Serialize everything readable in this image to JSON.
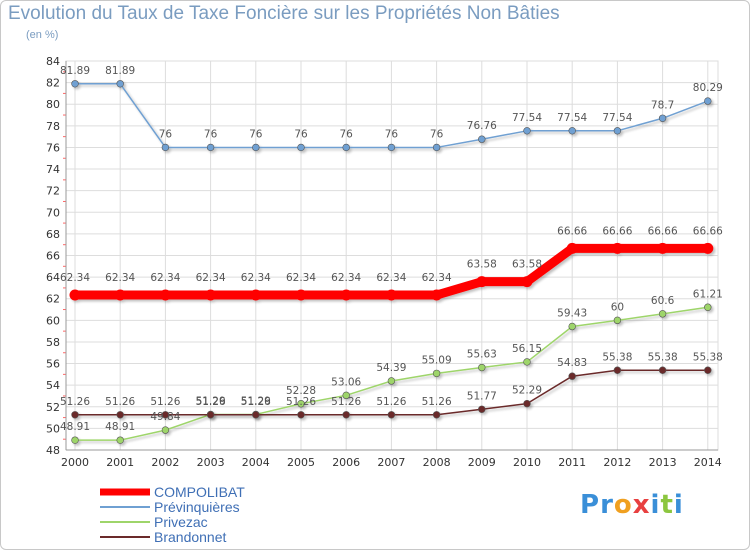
{
  "chart_data": {
    "type": "line",
    "title": "Evolution du Taux de Taxe Foncière sur les Propriétés Non Bâties",
    "subtitle": "(en %)",
    "xlabel": "",
    "ylabel": "",
    "x": [
      "2000",
      "2001",
      "2002",
      "2003",
      "2004",
      "2005",
      "2006",
      "2007",
      "2008",
      "2009",
      "2010",
      "2011",
      "2012",
      "2013",
      "2014"
    ],
    "ylim": [
      48,
      84
    ],
    "yticks": [
      "48",
      "50",
      "52",
      "54",
      "56",
      "58",
      "60",
      "62",
      "64",
      "66",
      "68",
      "70",
      "72",
      "74",
      "76",
      "78",
      "80",
      "82",
      "84"
    ],
    "grid": true,
    "legend_position": "bottom-left",
    "series": [
      {
        "name": "COMPOLIBAT",
        "color": "#ff0000",
        "width": 9,
        "values": [
          62.34,
          62.34,
          62.34,
          62.34,
          62.34,
          62.34,
          62.34,
          62.34,
          62.34,
          63.58,
          63.58,
          66.66,
          66.66,
          66.66,
          66.66
        ],
        "labels": [
          "62.34",
          "62.34",
          "62.34",
          "62.34",
          "62.34",
          "62.34",
          "62.34",
          "62.34",
          "62.34",
          "63.58",
          "63.58",
          "66.66",
          "66.66",
          "66.66",
          "66.66"
        ]
      },
      {
        "name": "Prévinquières",
        "color": "#6fa0d2",
        "width": 1.5,
        "values": [
          81.89,
          81.89,
          76,
          76,
          76,
          76,
          76,
          76,
          76,
          76.76,
          77.54,
          77.54,
          77.54,
          78.7,
          80.29
        ],
        "labels": [
          "81.89",
          "81.89",
          "76",
          "76",
          "76",
          "76",
          "76",
          "76",
          "76",
          "76.76",
          "77.54",
          "77.54",
          "77.54",
          "78.7",
          "80.29"
        ]
      },
      {
        "name": "Privezac",
        "color": "#9ed56a",
        "width": 1.5,
        "values": [
          48.91,
          48.91,
          49.84,
          51.29,
          51.29,
          52.28,
          53.06,
          54.39,
          55.09,
          55.63,
          56.15,
          59.43,
          60,
          60.6,
          61.21
        ],
        "labels": [
          "48.91",
          "48.91",
          "49.84",
          "51.29",
          "51.29",
          "52.28",
          "53.06",
          "54.39",
          "55.09",
          "55.63",
          "56.15",
          "59.43",
          "60",
          "60.6",
          "61.21"
        ]
      },
      {
        "name": "Brandonnet",
        "color": "#6b2a2a",
        "width": 1.5,
        "values": [
          51.26,
          51.26,
          51.26,
          51.26,
          51.26,
          51.26,
          51.26,
          51.26,
          51.26,
          51.77,
          52.29,
          54.83,
          55.38,
          55.38,
          55.38
        ],
        "labels": [
          "51.26",
          "51.26",
          "51.26",
          "51.26",
          "51.26",
          "51.26",
          "51.26",
          "51.26",
          "51.26",
          "51.77",
          "52.29",
          "54.83",
          "55.38",
          "55.38",
          "55.38"
        ]
      }
    ]
  },
  "branding": {
    "logo_letters": [
      "P",
      "r",
      "o",
      "x",
      "i",
      "t",
      "i"
    ],
    "logo_colors": [
      "#3a8fd8",
      "#3a8fd8",
      "#f0a020",
      "#e84040",
      "#3a8fd8",
      "#8cc63f",
      "#3a8fd8"
    ]
  }
}
